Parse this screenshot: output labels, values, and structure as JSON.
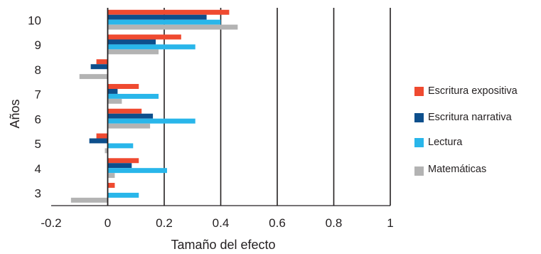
{
  "chart_data": {
    "type": "bar",
    "orientation": "horizontal",
    "xlabel": "Tamaño del efecto",
    "ylabel": "Años",
    "xlim": [
      -0.2,
      1
    ],
    "x_ticks": [
      "-0.2",
      "0",
      "0.2",
      "0.4",
      "0.6",
      "0.8",
      "1"
    ],
    "x_tick_values": [
      -0.2,
      0,
      0.2,
      0.4,
      0.6,
      0.8,
      1
    ],
    "categories": [
      "10",
      "9",
      "8",
      "7",
      "6",
      "5",
      "4",
      "3"
    ],
    "grid": "vertical",
    "legend_position": "right",
    "series": [
      {
        "name": "Escritura expositiva",
        "color": "#ef4a30",
        "values": [
          0.43,
          0.26,
          -0.04,
          0.11,
          0.12,
          -0.04,
          0.11,
          0.025
        ]
      },
      {
        "name": "Escritura narrativa",
        "color": "#0d4f8c",
        "values": [
          0.35,
          0.17,
          -0.06,
          0.035,
          0.16,
          -0.065,
          0.085,
          0
        ]
      },
      {
        "name": "Lectura",
        "color": "#29b6ea",
        "values": [
          0.4,
          0.31,
          0,
          0.18,
          0.31,
          0.09,
          0.21,
          0.11
        ]
      },
      {
        "name": "Matemáticas",
        "color": "#b3b3b3",
        "values": [
          0.46,
          0.18,
          -0.1,
          0.05,
          0.15,
          -0.01,
          0.025,
          -0.13
        ]
      }
    ]
  }
}
